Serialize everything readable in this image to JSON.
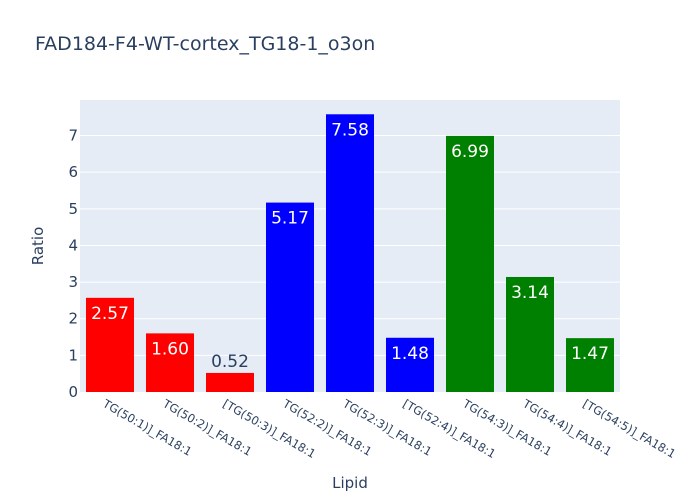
{
  "chart_data": {
    "type": "bar",
    "title": "FAD184-F4-WT-cortex_TG18-1_o3on",
    "xlabel": "Lipid",
    "ylabel": "Ratio",
    "categories": [
      "TG(50:1)]_FA18:1",
      "TG(50:2)]_FA18:1",
      "[TG(50:3)]_FA18:1",
      "TG(52:2)]_FA18:1",
      "TG(52:3)]_FA18:1",
      "[TG(52:4)]_FA18:1",
      "TG(54:3)]_FA18:1",
      "TG(54:4)]_FA18:1",
      "[TG(54:5)]_FA18:1"
    ],
    "values": [
      2.57,
      1.6,
      0.52,
      5.17,
      7.58,
      1.48,
      6.99,
      3.14,
      1.47
    ],
    "value_labels": [
      "2.57",
      "1.60",
      "0.52",
      "5.17",
      "7.58",
      "1.48",
      "6.99",
      "3.14",
      "1.47"
    ],
    "colors": [
      "#ff0000",
      "#ff0000",
      "#ff0000",
      "#0000ff",
      "#0000ff",
      "#0000ff",
      "#008000",
      "#008000",
      "#008000"
    ],
    "ylim": [
      0,
      7.97
    ],
    "yticks": [
      0,
      1,
      2,
      3,
      4,
      5,
      6,
      7
    ],
    "grid": true,
    "legend": "none",
    "plot_background": "#e5ecf6",
    "text_color": "#2a3f5f"
  }
}
